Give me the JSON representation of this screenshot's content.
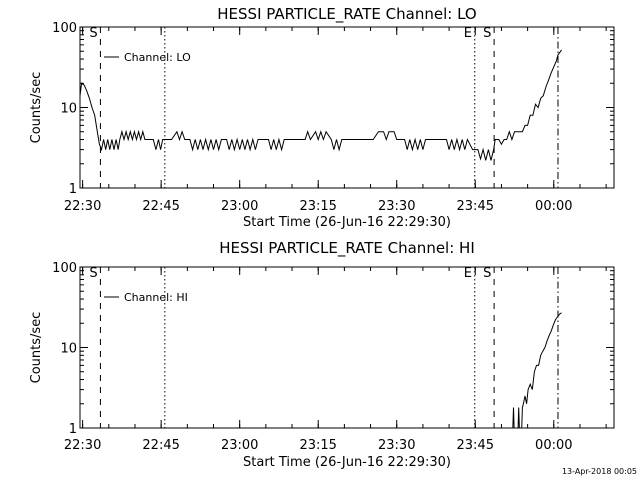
{
  "footer": {
    "date_stamp": "13-Apr-2018 00:05"
  },
  "chart_data": [
    {
      "type": "line",
      "title": "HESSI PARTICLE_RATE Channel: LO",
      "xlabel": "Start Time (26-Jun-16 22:29:30)",
      "ylabel": "Counts/sec",
      "yscale": "log",
      "ylim": [
        1,
        100
      ],
      "x_units": "minutes since 22:29:30",
      "xlim": [
        0,
        102
      ],
      "x_ticks": [
        {
          "x": 0.5,
          "label": "22:30"
        },
        {
          "x": 15.5,
          "label": "22:45"
        },
        {
          "x": 30.5,
          "label": "23:00"
        },
        {
          "x": 45.5,
          "label": "23:15"
        },
        {
          "x": 60.5,
          "label": "23:30"
        },
        {
          "x": 75.5,
          "label": "23:45"
        },
        {
          "x": 90.5,
          "label": "00:00"
        }
      ],
      "y_ticks": [
        {
          "y": 1,
          "label": "1"
        },
        {
          "y": 10,
          "label": "10"
        },
        {
          "y": 100,
          "label": "100"
        }
      ],
      "legend": {
        "label": "Channel: LO",
        "placement": "top-left"
      },
      "markers": [
        {
          "x": 3.9,
          "style": "dashed",
          "label": "S"
        },
        {
          "x": 16.2,
          "style": "dotted",
          "label": ""
        },
        {
          "x": 75.4,
          "style": "dotted",
          "label": "E"
        },
        {
          "x": 79.1,
          "style": "dashed",
          "label": "S"
        },
        {
          "x": 91.3,
          "style": "dashdot",
          "label": ""
        }
      ],
      "series": [
        {
          "name": "Channel: LO",
          "points": [
            [
              0,
              14
            ],
            [
              0.3,
              20
            ],
            [
              0.8,
              19
            ],
            [
              1.3,
              16
            ],
            [
              1.8,
              13
            ],
            [
              2.3,
              10
            ],
            [
              2.8,
              8
            ],
            [
              3.3,
              5
            ],
            [
              3.7,
              3.5
            ],
            [
              4.1,
              3
            ],
            [
              4.5,
              4
            ],
            [
              4.9,
              3
            ],
            [
              5.3,
              4
            ],
            [
              5.7,
              3
            ],
            [
              6.1,
              4
            ],
            [
              6.5,
              3
            ],
            [
              6.9,
              4
            ],
            [
              7.3,
              3
            ],
            [
              7.6,
              4
            ],
            [
              8.0,
              5
            ],
            [
              8.4,
              4
            ],
            [
              8.8,
              5
            ],
            [
              9.2,
              4
            ],
            [
              9.6,
              5
            ],
            [
              10.0,
              4
            ],
            [
              10.4,
              5
            ],
            [
              10.8,
              4
            ],
            [
              11.2,
              5
            ],
            [
              11.6,
              4
            ],
            [
              12.0,
              5
            ],
            [
              12.4,
              4
            ],
            [
              13,
              4
            ],
            [
              14,
              4
            ],
            [
              14.5,
              3
            ],
            [
              15,
              4
            ],
            [
              15.4,
              3
            ],
            [
              15.8,
              4
            ],
            [
              16.5,
              4
            ],
            [
              17.5,
              4
            ],
            [
              18.5,
              5
            ],
            [
              19,
              4
            ],
            [
              19.5,
              5
            ],
            [
              20,
              4
            ],
            [
              21,
              4
            ],
            [
              21.5,
              3
            ],
            [
              22,
              4
            ],
            [
              22.5,
              3
            ],
            [
              23,
              4
            ],
            [
              23.5,
              3
            ],
            [
              24,
              4
            ],
            [
              24.5,
              3
            ],
            [
              25,
              4
            ],
            [
              25.5,
              3
            ],
            [
              26,
              4
            ],
            [
              26.5,
              3
            ],
            [
              27,
              4
            ],
            [
              28,
              4
            ],
            [
              28.5,
              3
            ],
            [
              29,
              4
            ],
            [
              29.5,
              3
            ],
            [
              30,
              4
            ],
            [
              30.5,
              3
            ],
            [
              31,
              4
            ],
            [
              31.5,
              3
            ],
            [
              32,
              4
            ],
            [
              32.5,
              3
            ],
            [
              33,
              4
            ],
            [
              33.5,
              3
            ],
            [
              34,
              4
            ],
            [
              35,
              4
            ],
            [
              36,
              4
            ],
            [
              36.5,
              3
            ],
            [
              37,
              4
            ],
            [
              37.5,
              3
            ],
            [
              38,
              4
            ],
            [
              38.5,
              3
            ],
            [
              39,
              4
            ],
            [
              40,
              4
            ],
            [
              41,
              4
            ],
            [
              42,
              4
            ],
            [
              43,
              4
            ],
            [
              43.5,
              5
            ],
            [
              44,
              4
            ],
            [
              45,
              5
            ],
            [
              45.5,
              4
            ],
            [
              46,
              5
            ],
            [
              46.5,
              4
            ],
            [
              47,
              5
            ],
            [
              48,
              4
            ],
            [
              48.5,
              3
            ],
            [
              49,
              4
            ],
            [
              49.5,
              3
            ],
            [
              50,
              4
            ],
            [
              51,
              4
            ],
            [
              52,
              4
            ],
            [
              53,
              4
            ],
            [
              54,
              4
            ],
            [
              55,
              4
            ],
            [
              56,
              4
            ],
            [
              57,
              5
            ],
            [
              58,
              5
            ],
            [
              58.5,
              4
            ],
            [
              59,
              5
            ],
            [
              60,
              5
            ],
            [
              60.5,
              4
            ],
            [
              61,
              4
            ],
            [
              62,
              4
            ],
            [
              62.5,
              3
            ],
            [
              63,
              4
            ],
            [
              63.5,
              3
            ],
            [
              64,
              4
            ],
            [
              64.5,
              3
            ],
            [
              65,
              4
            ],
            [
              65.5,
              3
            ],
            [
              66,
              4
            ],
            [
              67,
              4
            ],
            [
              68,
              4
            ],
            [
              69,
              4
            ],
            [
              70,
              4
            ],
            [
              70.5,
              3
            ],
            [
              71,
              4
            ],
            [
              71.5,
              3
            ],
            [
              72,
              4
            ],
            [
              72.5,
              3
            ],
            [
              73,
              4
            ],
            [
              73.5,
              3
            ],
            [
              74,
              4
            ],
            [
              75,
              3
            ],
            [
              76,
              3
            ],
            [
              76.5,
              2.3
            ],
            [
              77,
              3
            ],
            [
              77.5,
              2.2
            ],
            [
              78,
              3
            ],
            [
              78.5,
              2.2
            ],
            [
              79,
              3
            ],
            [
              79.3,
              4
            ],
            [
              80,
              4
            ],
            [
              80.5,
              3.5
            ],
            [
              81,
              4
            ],
            [
              81.5,
              4
            ],
            [
              82,
              5
            ],
            [
              82.5,
              4
            ],
            [
              83,
              5
            ],
            [
              83.5,
              5
            ],
            [
              84,
              5
            ],
            [
              84.5,
              5
            ],
            [
              85,
              6
            ],
            [
              85.5,
              6
            ],
            [
              86,
              8
            ],
            [
              86.5,
              8
            ],
            [
              87,
              11
            ],
            [
              87.5,
              10
            ],
            [
              88,
              13
            ],
            [
              88.5,
              14
            ],
            [
              89,
              18
            ],
            [
              89.5,
              22
            ],
            [
              90,
              27
            ],
            [
              90.5,
              32
            ],
            [
              91,
              38
            ],
            [
              91.3,
              45
            ],
            [
              91.6,
              48
            ],
            [
              92,
              52
            ]
          ]
        }
      ]
    },
    {
      "type": "line",
      "title": "HESSI PARTICLE_RATE Channel: HI",
      "xlabel": "Start Time (26-Jun-16 22:29:30)",
      "ylabel": "Counts/sec",
      "yscale": "log",
      "ylim": [
        1,
        100
      ],
      "x_units": "minutes since 22:29:30",
      "xlim": [
        0,
        102
      ],
      "x_ticks": [
        {
          "x": 0.5,
          "label": "22:30"
        },
        {
          "x": 15.5,
          "label": "22:45"
        },
        {
          "x": 30.5,
          "label": "23:00"
        },
        {
          "x": 45.5,
          "label": "23:15"
        },
        {
          "x": 60.5,
          "label": "23:30"
        },
        {
          "x": 75.5,
          "label": "23:45"
        },
        {
          "x": 90.5,
          "label": "00:00"
        }
      ],
      "y_ticks": [
        {
          "y": 1,
          "label": "1"
        },
        {
          "y": 10,
          "label": "10"
        },
        {
          "y": 100,
          "label": "100"
        }
      ],
      "legend": {
        "label": "Channel: HI",
        "placement": "top-left"
      },
      "markers": [
        {
          "x": 3.9,
          "style": "dashed",
          "label": "S"
        },
        {
          "x": 16.2,
          "style": "dotted",
          "label": ""
        },
        {
          "x": 75.4,
          "style": "dotted",
          "label": "E"
        },
        {
          "x": 79.1,
          "style": "dashed",
          "label": "S"
        },
        {
          "x": 91.3,
          "style": "dashdot",
          "label": ""
        }
      ],
      "series": [
        {
          "name": "Channel: HI",
          "points": [
            [
              82.6,
              0.7
            ],
            [
              82.8,
              1.8
            ],
            [
              83.0,
              0.7
            ],
            [
              83.6,
              0.7
            ],
            [
              83.8,
              1.8
            ],
            [
              84.0,
              0.7
            ],
            [
              84.3,
              0.7
            ],
            [
              84.5,
              1.8
            ],
            [
              84.7,
              2
            ],
            [
              85,
              2.5
            ],
            [
              85.3,
              2
            ],
            [
              85.6,
              3
            ],
            [
              86,
              3.5
            ],
            [
              86.4,
              3
            ],
            [
              86.8,
              5
            ],
            [
              87.2,
              6
            ],
            [
              87.6,
              6
            ],
            [
              88,
              8
            ],
            [
              88.4,
              9
            ],
            [
              88.8,
              10
            ],
            [
              89.2,
              12
            ],
            [
              89.6,
              14
            ],
            [
              90,
              16
            ],
            [
              90.4,
              19
            ],
            [
              90.8,
              22
            ],
            [
              91.2,
              24
            ],
            [
              91.6,
              26
            ],
            [
              92,
              27
            ]
          ]
        }
      ]
    }
  ]
}
